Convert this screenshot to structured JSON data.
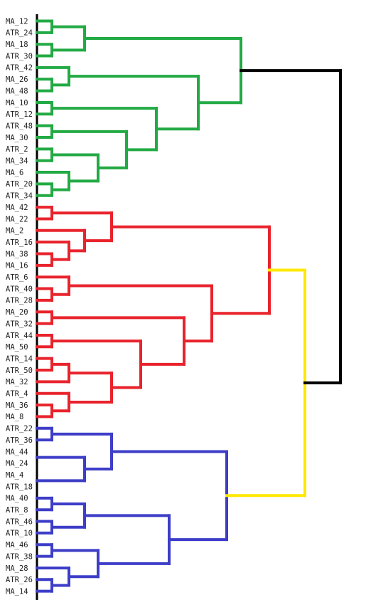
{
  "leaves": [
    "MA_12",
    "ATR_24",
    "MA_18",
    "ATR_30",
    "ATR_42",
    "MA_26",
    "MA_48",
    "MA_10",
    "ATR_12",
    "ATR_48",
    "MA_30",
    "ATR_2",
    "MA_34",
    "MA_6",
    "ATR_20",
    "ATR_34",
    "MA_42",
    "MA_22",
    "MA_2",
    "ATR_16",
    "MA_38",
    "MA_16",
    "ATR_6",
    "ATR_40",
    "ATR_28",
    "MA_20",
    "ATR_32",
    "ATR_44",
    "MA_50",
    "ATR_14",
    "ATR_50",
    "MA_32",
    "ATR_4",
    "MA_36",
    "MA_8",
    "ATR_22",
    "ATR_36",
    "MA_44",
    "MA_24",
    "MA_4",
    "ATR_18",
    "MA_40",
    "ATR_8",
    "ATR_46",
    "ATR_10",
    "MA_46",
    "ATR_38",
    "MA_28",
    "ATR_26",
    "MA_14"
  ],
  "colors": {
    "green": "#22aa44",
    "red": "#e8232c",
    "blue": "#3d3dc8",
    "yellow": "#ffe800",
    "black": "#000000"
  },
  "clusters": {
    "green": {
      "color": "green",
      "first": "MA_12",
      "last": "ATR_34"
    },
    "red": {
      "color": "red",
      "first": "MA_42",
      "last": "MA_8"
    },
    "blue": {
      "color": "blue",
      "first": "ATR_22",
      "last": "MA_14"
    }
  }
}
